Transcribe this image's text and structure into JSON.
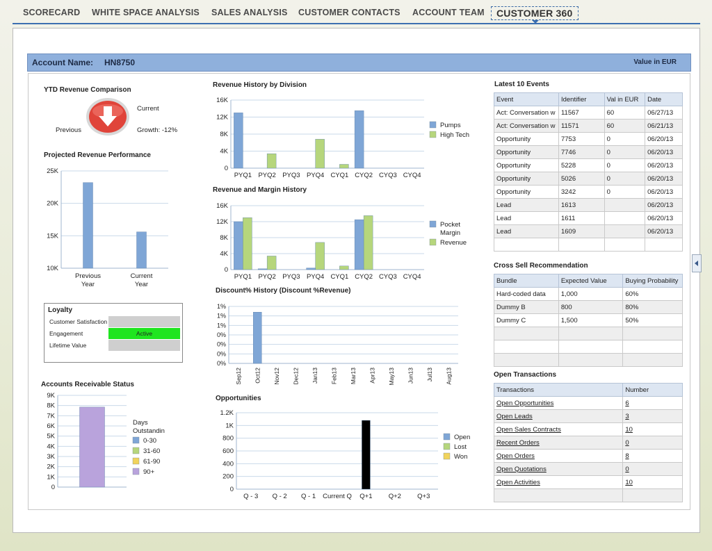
{
  "nav": {
    "tabs": [
      "SCORECARD",
      "WHITE SPACE ANALYSIS",
      "SALES ANALYSIS",
      "CUSTOMER CONTACTS",
      "ACCOUNT TEAM"
    ],
    "active": "CUSTOMER 360"
  },
  "header": {
    "account_label": "Account Name:",
    "account_value": "HN8750",
    "currency_note": "Value in EUR"
  },
  "ytd": {
    "title": "YTD Revenue Comparison",
    "current_label": "Current",
    "previous_label": "Previous",
    "growth_label": "Growth: -12%",
    "indicator_icon": "down-arrow-icon",
    "indicator_color": "#e0443a"
  },
  "projected": {
    "title": "Projected Revenue Performance",
    "chart_data": {
      "type": "bar",
      "categories": [
        "Previous Year",
        "Current Year"
      ],
      "values": [
        23200,
        15600
      ],
      "ylim": [
        10000,
        25000
      ],
      "yticks": [
        "25K",
        "20K",
        "15K",
        "10K"
      ],
      "color": "#7fa6d6"
    }
  },
  "loyalty": {
    "title": "Loyalty",
    "rows": [
      {
        "label": "Customer Satisfaction",
        "value": ""
      },
      {
        "label": "Engagement",
        "value": "Active"
      },
      {
        "label": "Lifetime Value",
        "value": ""
      }
    ]
  },
  "ar": {
    "title": "Accounts Receivable Status",
    "chart_data": {
      "type": "bar",
      "values": [
        7850
      ],
      "ylim": [
        0,
        9000
      ],
      "yticks": [
        "9K",
        "8K",
        "7K",
        "6K",
        "5K",
        "4K",
        "3K",
        "2K",
        "1K",
        "0"
      ],
      "legend_title": "Days Outstandin",
      "legend": [
        {
          "name": "0-30",
          "color": "#7fa6d6"
        },
        {
          "name": "31-60",
          "color": "#b6d67c"
        },
        {
          "name": "61-90",
          "color": "#f1d35c"
        },
        {
          "name": "90+",
          "color": "#b9a3dc"
        }
      ],
      "bar_color": "#b9a3dc"
    }
  },
  "rev_division": {
    "title": "Revenue History by Division",
    "chart_data": {
      "type": "bar",
      "categories": [
        "PYQ1",
        "PYQ2",
        "PYQ3",
        "PYQ4",
        "CYQ1",
        "CYQ2",
        "CYQ3",
        "CYQ4"
      ],
      "ylim": [
        0,
        16000
      ],
      "yticks": [
        "16K",
        "12K",
        "8K",
        "4K",
        "0"
      ],
      "series": [
        {
          "name": "Pumps",
          "color": "#7fa6d6",
          "values": [
            13000,
            0,
            0,
            0,
            0,
            13500,
            0,
            0
          ]
        },
        {
          "name": "High Tech",
          "color": "#b6d67c",
          "values": [
            0,
            3400,
            0,
            6800,
            900,
            0,
            0,
            0
          ]
        }
      ]
    }
  },
  "rev_margin": {
    "title": "Revenue and Margin History",
    "chart_data": {
      "type": "bar",
      "categories": [
        "PYQ1",
        "PYQ2",
        "PYQ3",
        "PYQ4",
        "CYQ1",
        "CYQ2",
        "CYQ3",
        "CYQ4"
      ],
      "ylim": [
        0,
        16000
      ],
      "yticks": [
        "16K",
        "12K",
        "8K",
        "4K",
        "0"
      ],
      "series": [
        {
          "name": "Pocket Margin",
          "color": "#7fa6d6",
          "values": [
            12000,
            200,
            0,
            400,
            0,
            12500,
            0,
            0
          ]
        },
        {
          "name": "Revenue",
          "color": "#b6d67c",
          "values": [
            13000,
            3400,
            0,
            6800,
            900,
            13500,
            0,
            0
          ]
        }
      ]
    }
  },
  "discount": {
    "title": "Discount% History (Discount %Revenue)",
    "chart_data": {
      "type": "bar",
      "categories": [
        "Sep12",
        "Oct12",
        "Nov12",
        "Dec12",
        "Jan13",
        "Feb13",
        "Mar13",
        "Apr13",
        "May13",
        "Jun13",
        "Jul13",
        "Aug13"
      ],
      "values": [
        0,
        1.35,
        0,
        0,
        0,
        0,
        0,
        0,
        0,
        0,
        0,
        0
      ],
      "ylim": [
        0,
        1.5
      ],
      "yticks": [
        "1%",
        "1%",
        "1%",
        "0%",
        "0%",
        "0%",
        "0%"
      ],
      "color": "#7fa6d6"
    }
  },
  "opportunities": {
    "title": "Opportunities",
    "chart_data": {
      "type": "bar",
      "categories": [
        "Q - 3",
        "Q - 2",
        "Q - 1",
        "Current Q",
        "Q+1",
        "Q+2",
        "Q+3"
      ],
      "values": [
        0,
        0,
        0,
        0,
        1080,
        0,
        0
      ],
      "ylim": [
        0,
        1200
      ],
      "yticks": [
        "1.2K",
        "1K",
        "800",
        "600",
        "400",
        "200",
        "0"
      ],
      "legend": [
        {
          "name": "Open",
          "color": "#7fa6d6"
        },
        {
          "name": "Lost",
          "color": "#b6d67c"
        },
        {
          "name": "Won",
          "color": "#f1d35c"
        }
      ]
    }
  },
  "events": {
    "title": "Latest 10 Events",
    "columns": [
      "Event",
      "Identifier",
      "Val in EUR",
      "Date"
    ],
    "rows": [
      [
        "Act: Conversation w",
        "11567",
        "60",
        "06/27/13"
      ],
      [
        "Act: Conversation w",
        "11571",
        "60",
        "06/21/13"
      ],
      [
        "Opportunity",
        "7753",
        "0",
        "06/20/13"
      ],
      [
        "Opportunity",
        "7746",
        "0",
        "06/20/13"
      ],
      [
        "Opportunity",
        "5228",
        "0",
        "06/20/13"
      ],
      [
        "Opportunity",
        "5026",
        "0",
        "06/20/13"
      ],
      [
        "Opportunity",
        "3242",
        "0",
        "06/20/13"
      ],
      [
        "Lead",
        "1613",
        "",
        "06/20/13"
      ],
      [
        "Lead",
        "1611",
        "",
        "06/20/13"
      ],
      [
        "Lead",
        "1609",
        "",
        "06/20/13"
      ]
    ]
  },
  "crosssell": {
    "title": "Cross Sell Recommendation",
    "columns": [
      "Bundle",
      "Expected Value",
      "Buying Probability"
    ],
    "rows": [
      [
        "Hard-coded data",
        "1,000",
        "60%"
      ],
      [
        "Dummy B",
        "800",
        "80%"
      ],
      [
        "Dummy C",
        "1,500",
        "50%"
      ]
    ]
  },
  "transactions": {
    "title": "Open Transactions",
    "columns": [
      "Transactions",
      "Number"
    ],
    "rows": [
      [
        "Open Opportunities",
        "6"
      ],
      [
        "Open Leads",
        "3"
      ],
      [
        "Open Sales Contracts",
        "10"
      ],
      [
        "Recent Orders",
        "0"
      ],
      [
        "Open Orders",
        "8"
      ],
      [
        "Open Quotations",
        "0"
      ],
      [
        "Open Activities",
        "10"
      ]
    ]
  }
}
